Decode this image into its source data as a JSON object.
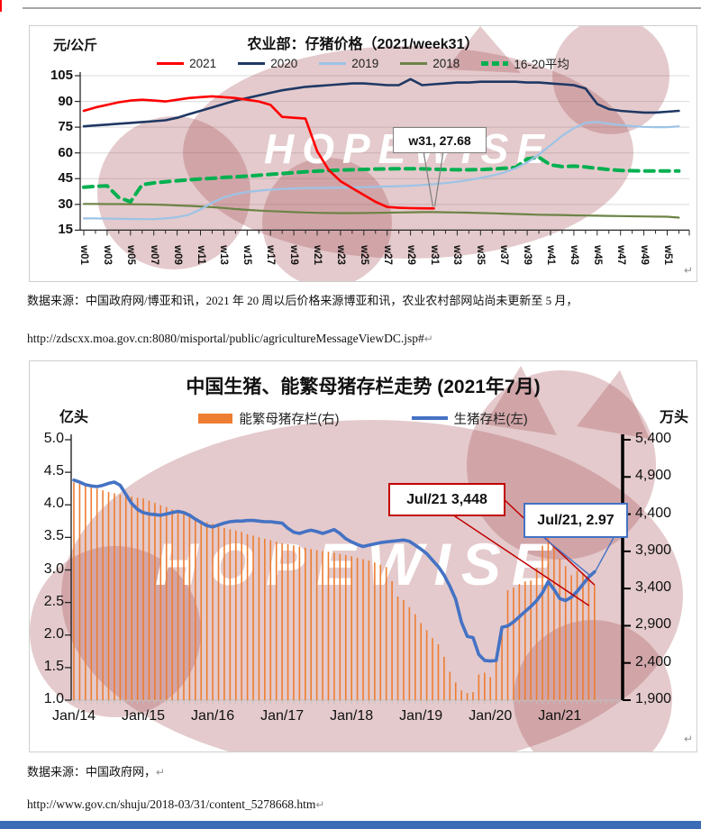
{
  "page": {
    "pilcrow": "↵",
    "top_rule_color": "#a6a6a6",
    "cursor_color": "#ff0000",
    "bottom_bar_color": "#3a6db5"
  },
  "watermark": {
    "text": "HOPEWISE",
    "fill": "rgba(165,80,85,0.30)"
  },
  "chart1": {
    "title": "农业部：仔猪价格（2021/week31）",
    "unit": "元/公斤",
    "annotation": "w31, 27.68",
    "legend": [
      {
        "label": "2021",
        "color": "#FF0000",
        "dashed": false
      },
      {
        "label": "2020",
        "color": "#1F3864",
        "dashed": false
      },
      {
        "label": "2019",
        "color": "#9DC3E6",
        "dashed": false
      },
      {
        "label": "2018",
        "color": "#6D8346",
        "dashed": false
      },
      {
        "label": "16-20平均",
        "color": "#00B050",
        "dashed": true
      }
    ]
  },
  "source1": {
    "text": "数据来源：中国政府网/博亚和讯，2021 年 20 周以后价格来源博亚和讯，农业农村部网站尚未更新至 5 月，",
    "url": "http://zdscxx.moa.gov.cn:8080/misportal/public/agricultureMessageViewDC.jsp#"
  },
  "chart2": {
    "title": "中国生猪、能繁母猪存栏走势 (2021年7月)",
    "left_unit": "亿头",
    "right_unit": "万头",
    "annotation_red": "Jul/21  3,448",
    "annotation_blue": "Jul/21, 2.97",
    "legend": [
      {
        "label": "能繁母猪存栏(右)",
        "color": "#ED7D31",
        "type": "bar"
      },
      {
        "label": "生猪存栏(左)",
        "color": "#4472C4",
        "type": "line"
      }
    ]
  },
  "source2": {
    "text": "数据来源：中国政府网，",
    "url": "http://www.gov.cn/shuju/2018-03/31/content_5278668.htm"
  },
  "chart_data": [
    {
      "type": "line",
      "title": "农业部：仔猪价格（2021/week31）",
      "ylabel": "元/公斤",
      "ylim": [
        15,
        105
      ],
      "yticks": [
        105,
        90,
        75,
        60,
        45,
        30,
        15
      ],
      "x_tick_labels": [
        "w01",
        "w03",
        "w05",
        "w07",
        "w09",
        "w11",
        "w13",
        "w15",
        "w17",
        "w19",
        "w21",
        "w23",
        "w25",
        "w27",
        "w29",
        "w31",
        "w33",
        "w35",
        "w37",
        "w39",
        "w41",
        "w43",
        "w45",
        "w47",
        "w49",
        "w51"
      ],
      "weeks_total": 52,
      "annotation": {
        "label": "w31, 27.68",
        "week": 31,
        "value": 27.68
      },
      "series": [
        {
          "name": "2021",
          "color": "#FF0000",
          "dashed": false,
          "width": 2.6,
          "values": [
            84.5,
            86.5,
            88,
            89.5,
            90.5,
            91,
            90.5,
            90,
            91,
            92,
            92.5,
            93,
            92.5,
            92,
            91,
            90,
            88,
            81,
            80.5,
            80,
            61,
            50,
            43.5,
            39.5,
            35.5,
            31.5,
            28.5,
            28,
            27.8,
            27.7,
            27.68
          ]
        },
        {
          "name": "2020",
          "color": "#1F3864",
          "dashed": false,
          "width": 2.6,
          "values": [
            75.5,
            76,
            76.5,
            77,
            77.5,
            78,
            78.5,
            79,
            80.5,
            82.5,
            84.5,
            86.5,
            88.5,
            90.5,
            92,
            93.5,
            95,
            96.5,
            97.5,
            98.5,
            99,
            99.5,
            100,
            100.5,
            100.5,
            100,
            99.5,
            99.5,
            103,
            99.5,
            100,
            100.5,
            101,
            101,
            101.5,
            101.5,
            101.5,
            101.5,
            101,
            101,
            100.5,
            100,
            99.5,
            97.5,
            88.5,
            85.5,
            84.5,
            84,
            83.5,
            83.5,
            84,
            84.5
          ]
        },
        {
          "name": "2019",
          "color": "#9DC3E6",
          "dashed": false,
          "width": 2.2,
          "values": [
            21.8,
            21.8,
            21.7,
            21.6,
            21.5,
            21.4,
            21.4,
            21.8,
            22.5,
            24,
            27,
            31,
            34,
            36,
            37.2,
            38,
            38.6,
            39,
            39.3,
            39.5,
            39.6,
            39.7,
            39.8,
            39.9,
            40,
            40.2,
            40.4,
            40.6,
            40.9,
            41.3,
            41.8,
            42.4,
            43.2,
            44.2,
            45.4,
            46.8,
            48.5,
            51,
            54.5,
            59,
            64.5,
            70,
            74.5,
            77.5,
            78,
            77,
            76.2,
            75.6,
            75.2,
            75,
            75,
            75.5
          ]
        },
        {
          "name": "2018",
          "color": "#6D8346",
          "dashed": false,
          "width": 2.2,
          "values": [
            30.3,
            30.3,
            30.2,
            30.2,
            30.1,
            30,
            29.9,
            29.7,
            29.4,
            29.1,
            28.8,
            28.4,
            27.9,
            27.3,
            26.8,
            26.4,
            26.1,
            25.8,
            25.5,
            25.3,
            25.1,
            25,
            24.9,
            24.9,
            25,
            25.1,
            25.2,
            25.3,
            25.4,
            25.5,
            25.5,
            25.4,
            25.3,
            25.2,
            25,
            24.8,
            24.6,
            24.4,
            24.2,
            24,
            23.9,
            23.8,
            23.6,
            23.5,
            23.4,
            23.3,
            23.2,
            23.1,
            23,
            22.9,
            22.8,
            22.3
          ]
        },
        {
          "name": "16-20平均",
          "color": "#00B050",
          "dashed": true,
          "width": 4,
          "values": [
            40,
            40.5,
            40.8,
            34,
            31.5,
            41.5,
            42.5,
            43.2,
            43.8,
            44.3,
            44.8,
            45.2,
            45.7,
            46.1,
            46.5,
            47,
            47.5,
            48,
            48.5,
            49,
            49.4,
            49.7,
            50,
            50.2,
            50.4,
            50.6,
            50.7,
            50.8,
            50.8,
            50.7,
            50.5,
            50.3,
            50.2,
            50.2,
            50.3,
            50.6,
            51,
            51.5,
            56.5,
            57.5,
            53,
            52,
            52.3,
            51.8,
            51,
            50.3,
            49.8,
            49.6,
            49.5,
            49.5,
            49.5,
            49.5
          ]
        }
      ]
    },
    {
      "type": "combo",
      "title": "中国生猪、能繁母猪存栏走势 (2021年7月)",
      "x_tick_labels": [
        "Jan/14",
        "Jan/15",
        "Jan/16",
        "Jan/17",
        "Jan/18",
        "Jan/19",
        "Jan/20",
        "Jan/21"
      ],
      "x_start": "Jan/14",
      "x_end": "Jul/21",
      "left_axis": {
        "unit": "亿头",
        "ticks": [
          5.0,
          4.5,
          4.0,
          3.5,
          3.0,
          2.5,
          2.0,
          1.5,
          1.0
        ],
        "lim": [
          1.0,
          5.0
        ]
      },
      "right_axis": {
        "unit": "万头",
        "ticks": [
          5400,
          4900,
          4400,
          3900,
          3400,
          2900,
          2400,
          1900
        ],
        "lim": [
          1900,
          5400
        ]
      },
      "bar_series": {
        "name": "能繁母猪存栏(右)",
        "axis": "right",
        "color": "#ED7D31",
        "values": [
          4828,
          4810,
          4790,
          4770,
          4745,
          4720,
          4696,
          4680,
          4665,
          4650,
          4635,
          4620,
          4612,
          4580,
          4550,
          4520,
          4495,
          4465,
          4432,
          4400,
          4370,
          4345,
          4315,
          4290,
          4270,
          4240,
          4215,
          4195,
          4180,
          4160,
          4130,
          4110,
          4090,
          4070,
          4050,
          4030,
          4010,
          3995,
          3980,
          3965,
          3950,
          3930,
          3915,
          3905,
          3895,
          3880,
          3865,
          3850,
          3835,
          3815,
          3795,
          3775,
          3750,
          3720,
          3690,
          3500,
          3293,
          3245,
          3150,
          3055,
          2936,
          2840,
          2733,
          2650,
          2483,
          2281,
          2138,
          2031,
          1995,
          2007,
          2245,
          2269,
          2210,
          2471,
          2900,
          3376,
          3412,
          3460,
          3496,
          3508,
          3676,
          3976,
          4138,
          3960,
          3800,
          3700,
          3580,
          3640,
          3600,
          3520,
          3448
        ]
      },
      "line_series": {
        "name": "生猪存栏(左)",
        "axis": "left",
        "color": "#4472C4",
        "values": [
          4.38,
          4.35,
          4.31,
          4.29,
          4.28,
          4.3,
          4.33,
          4.35,
          4.3,
          4.16,
          4.02,
          3.93,
          3.88,
          3.86,
          3.85,
          3.84,
          3.86,
          3.88,
          3.9,
          3.88,
          3.84,
          3.78,
          3.73,
          3.68,
          3.66,
          3.69,
          3.72,
          3.74,
          3.75,
          3.75,
          3.76,
          3.76,
          3.75,
          3.74,
          3.74,
          3.73,
          3.72,
          3.64,
          3.58,
          3.56,
          3.59,
          3.61,
          3.59,
          3.56,
          3.59,
          3.62,
          3.56,
          3.48,
          3.43,
          3.39,
          3.36,
          3.38,
          3.4,
          3.42,
          3.43,
          3.44,
          3.45,
          3.46,
          3.44,
          3.38,
          3.32,
          3.25,
          3.15,
          3.05,
          2.92,
          2.75,
          2.55,
          2.2,
          1.98,
          1.96,
          1.7,
          1.61,
          1.6,
          1.61,
          2.12,
          2.14,
          2.2,
          2.28,
          2.36,
          2.44,
          2.53,
          2.65,
          2.82,
          2.7,
          2.56,
          2.53,
          2.58,
          2.67,
          2.78,
          2.89,
          2.97
        ]
      },
      "annotations": [
        {
          "label": "Jul/21  3,448",
          "series": "能繁母猪存栏(右)",
          "x": "Jul/21",
          "value": 3448,
          "color": "#C00000"
        },
        {
          "label": "Jul/21, 2.97",
          "series": "生猪存栏(左)",
          "x": "Jul/21",
          "value": 2.97,
          "color": "#4472C4"
        }
      ]
    }
  ]
}
